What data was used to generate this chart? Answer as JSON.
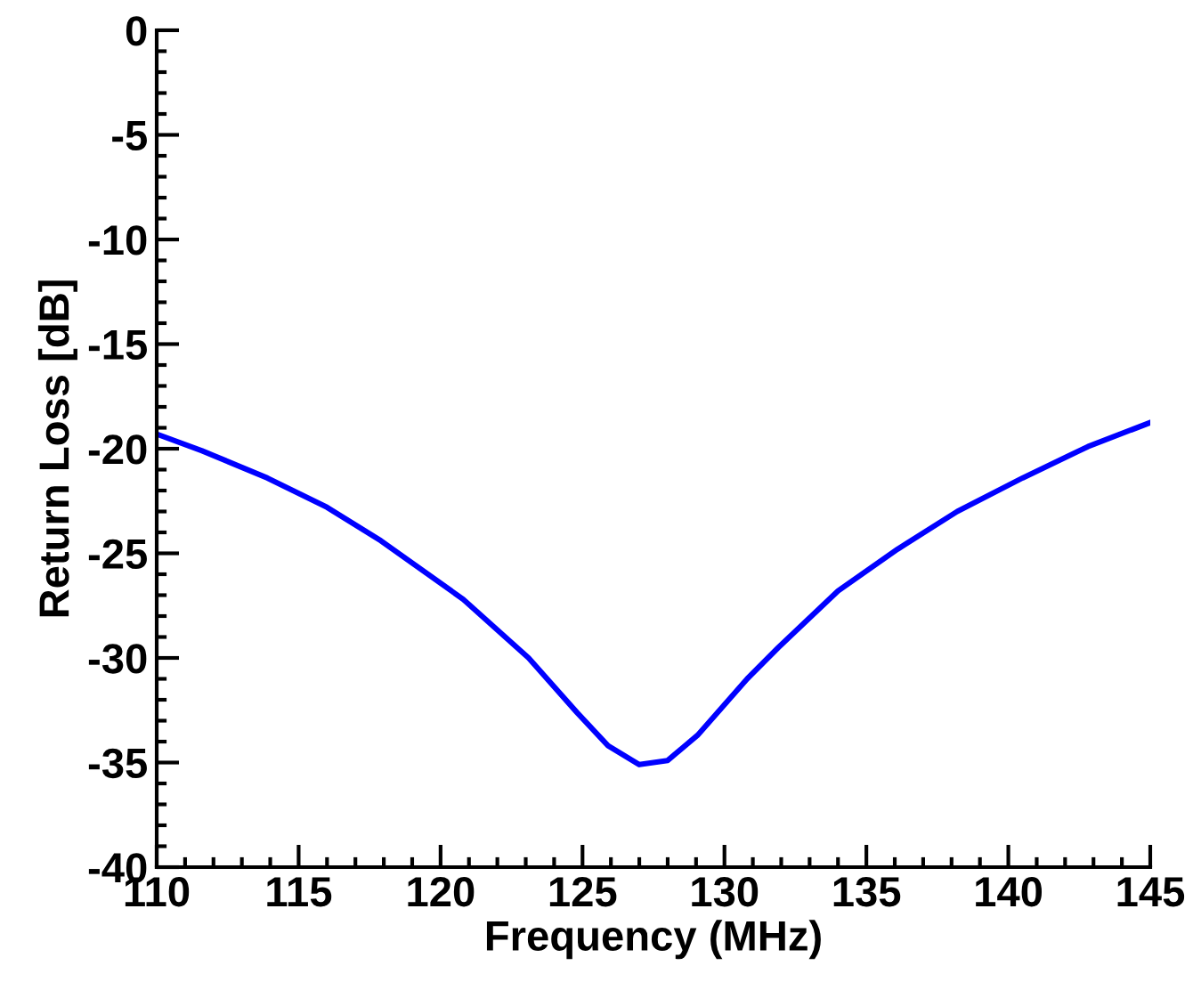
{
  "chart_data": {
    "type": "line",
    "xlabel": "Frequency (MHz)",
    "ylabel": "Return Loss [dB]",
    "xlim": [
      110,
      145
    ],
    "xticks": [
      110,
      115,
      120,
      125,
      130,
      135,
      140,
      145
    ],
    "ylim": [
      -40,
      0
    ],
    "yticks": [
      -40,
      -35,
      -30,
      -25,
      -20,
      -15,
      -10,
      -5,
      0
    ],
    "grid": false,
    "legend": false,
    "marker": "none",
    "line_style": "solid",
    "series": [
      {
        "color": "#0000ff",
        "x": [
          110,
          111.6,
          113.9,
          116.0,
          117.9,
          120.8,
          123.1,
          124.8,
          125.9,
          127.0,
          128.0,
          129.05,
          130.8,
          131.9,
          134.0,
          136.1,
          138.2,
          140.5,
          142.8,
          145
        ],
        "values": [
          -19.3,
          -20.1,
          -21.4,
          -22.8,
          -24.4,
          -27.2,
          -30.0,
          -32.6,
          -34.2,
          -35.1,
          -34.9,
          -33.7,
          -31.0,
          -29.5,
          -26.8,
          -24.8,
          -23.0,
          -21.4,
          -19.9,
          -18.75
        ]
      }
    ]
  }
}
